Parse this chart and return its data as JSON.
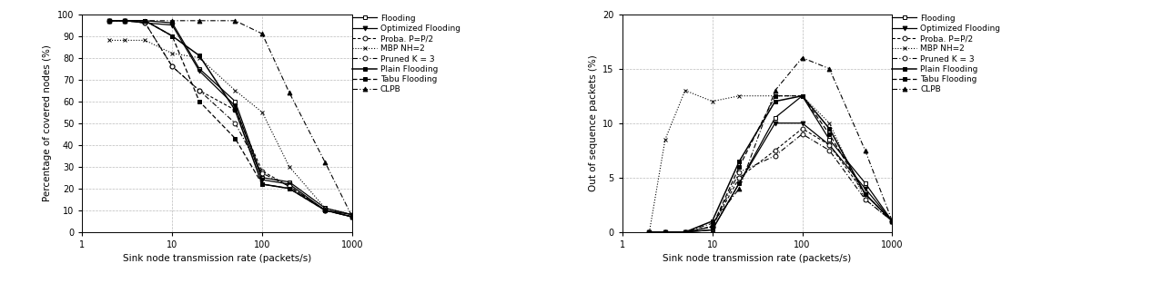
{
  "x_values": [
    2,
    3,
    5,
    10,
    20,
    50,
    100,
    200,
    500,
    1000
  ],
  "left_ylabel": "Percentage of covered nodes (%)",
  "left_xlabel": "Sink node transmission rate (packets/s)",
  "left_ylim": [
    0,
    100
  ],
  "right_ylabel": "Out of sequence packets (%)",
  "right_xlabel": "Sink node transmission rate (packets/s)",
  "right_ylim": [
    0,
    20
  ],
  "series": [
    {
      "label": "Flooding",
      "left_y": [
        97,
        97,
        97,
        96,
        75,
        60,
        25,
        23,
        11,
        8
      ],
      "right_y": [
        0,
        0,
        0,
        0.2,
        4.5,
        10.5,
        12.5,
        8.5,
        4.5,
        1.0
      ],
      "linestyle": "-",
      "marker": "s",
      "markerfacecolor": "white",
      "linewidth": 0.9,
      "dashes": null
    },
    {
      "label": "Optimized Flooding",
      "left_y": [
        97,
        97,
        96,
        95,
        74,
        58,
        24,
        22,
        10,
        8
      ],
      "right_y": [
        0,
        0,
        0,
        0.2,
        4.5,
        10.0,
        10.0,
        8.0,
        4.0,
        1.0
      ],
      "linestyle": "-",
      "marker": "v",
      "markerfacecolor": "black",
      "linewidth": 0.9,
      "dashes": null
    },
    {
      "label": "Proba. P=P/2",
      "left_y": [
        97,
        97,
        96,
        76,
        65,
        56,
        28,
        21,
        10,
        7
      ],
      "right_y": [
        0,
        0,
        0,
        0.5,
        5.0,
        7.5,
        9.5,
        8.0,
        3.5,
        1.0
      ],
      "linestyle": "--",
      "marker": "o",
      "markerfacecolor": "white",
      "linewidth": 0.8,
      "dashes": [
        3,
        2
      ]
    },
    {
      "label": "MBP NH=2",
      "left_y": [
        88,
        88,
        88,
        82,
        80,
        65,
        55,
        30,
        11,
        8
      ],
      "right_y": [
        0,
        8.5,
        13.0,
        12.0,
        12.5,
        12.5,
        12.5,
        10.0,
        3.0,
        1.0
      ],
      "linestyle": ":",
      "marker": "x",
      "markerfacecolor": "black",
      "linewidth": 0.8,
      "dashes": null
    },
    {
      "label": "Pruned K = 3",
      "left_y": [
        97,
        97,
        96,
        76,
        65,
        50,
        27,
        21,
        10,
        7
      ],
      "right_y": [
        0,
        0,
        0,
        0.5,
        5.5,
        7.0,
        9.0,
        7.5,
        3.0,
        1.0
      ],
      "linestyle": "--",
      "marker": "o",
      "markerfacecolor": "white",
      "linewidth": 0.8,
      "dashes": [
        5,
        2,
        1,
        2
      ]
    },
    {
      "label": "Plain Flooding",
      "left_y": [
        97,
        97,
        97,
        90,
        81,
        56,
        22,
        20,
        10,
        7
      ],
      "right_y": [
        0,
        0,
        0,
        1.0,
        6.5,
        12.0,
        12.5,
        9.5,
        3.5,
        1.0
      ],
      "linestyle": "-",
      "marker": "s",
      "markerfacecolor": "black",
      "linewidth": 1.1,
      "dashes": null
    },
    {
      "label": "Tabu Flooding",
      "left_y": [
        97,
        97,
        97,
        90,
        60,
        43,
        22,
        20,
        10,
        7
      ],
      "right_y": [
        0,
        0,
        0,
        0.5,
        6.0,
        12.5,
        12.5,
        9.0,
        3.5,
        1.0
      ],
      "linestyle": "--",
      "marker": "s",
      "markerfacecolor": "black",
      "linewidth": 0.9,
      "dashes": [
        4,
        2
      ]
    },
    {
      "label": "CLPB",
      "left_y": [
        97,
        97,
        97,
        97,
        97,
        97,
        91,
        64,
        32,
        7
      ],
      "right_y": [
        0,
        0,
        0,
        0.8,
        4.0,
        13.0,
        16.0,
        15.0,
        7.5,
        1.0
      ],
      "linestyle": "-.",
      "marker": "^",
      "markerfacecolor": "black",
      "linewidth": 0.8,
      "dashes": [
        5,
        2,
        1,
        2
      ]
    }
  ],
  "legend_fontsize": 6.5,
  "tick_fontsize": 7,
  "label_fontsize": 7.5,
  "bg_color": "white",
  "grid_color": "#bbbbbb"
}
